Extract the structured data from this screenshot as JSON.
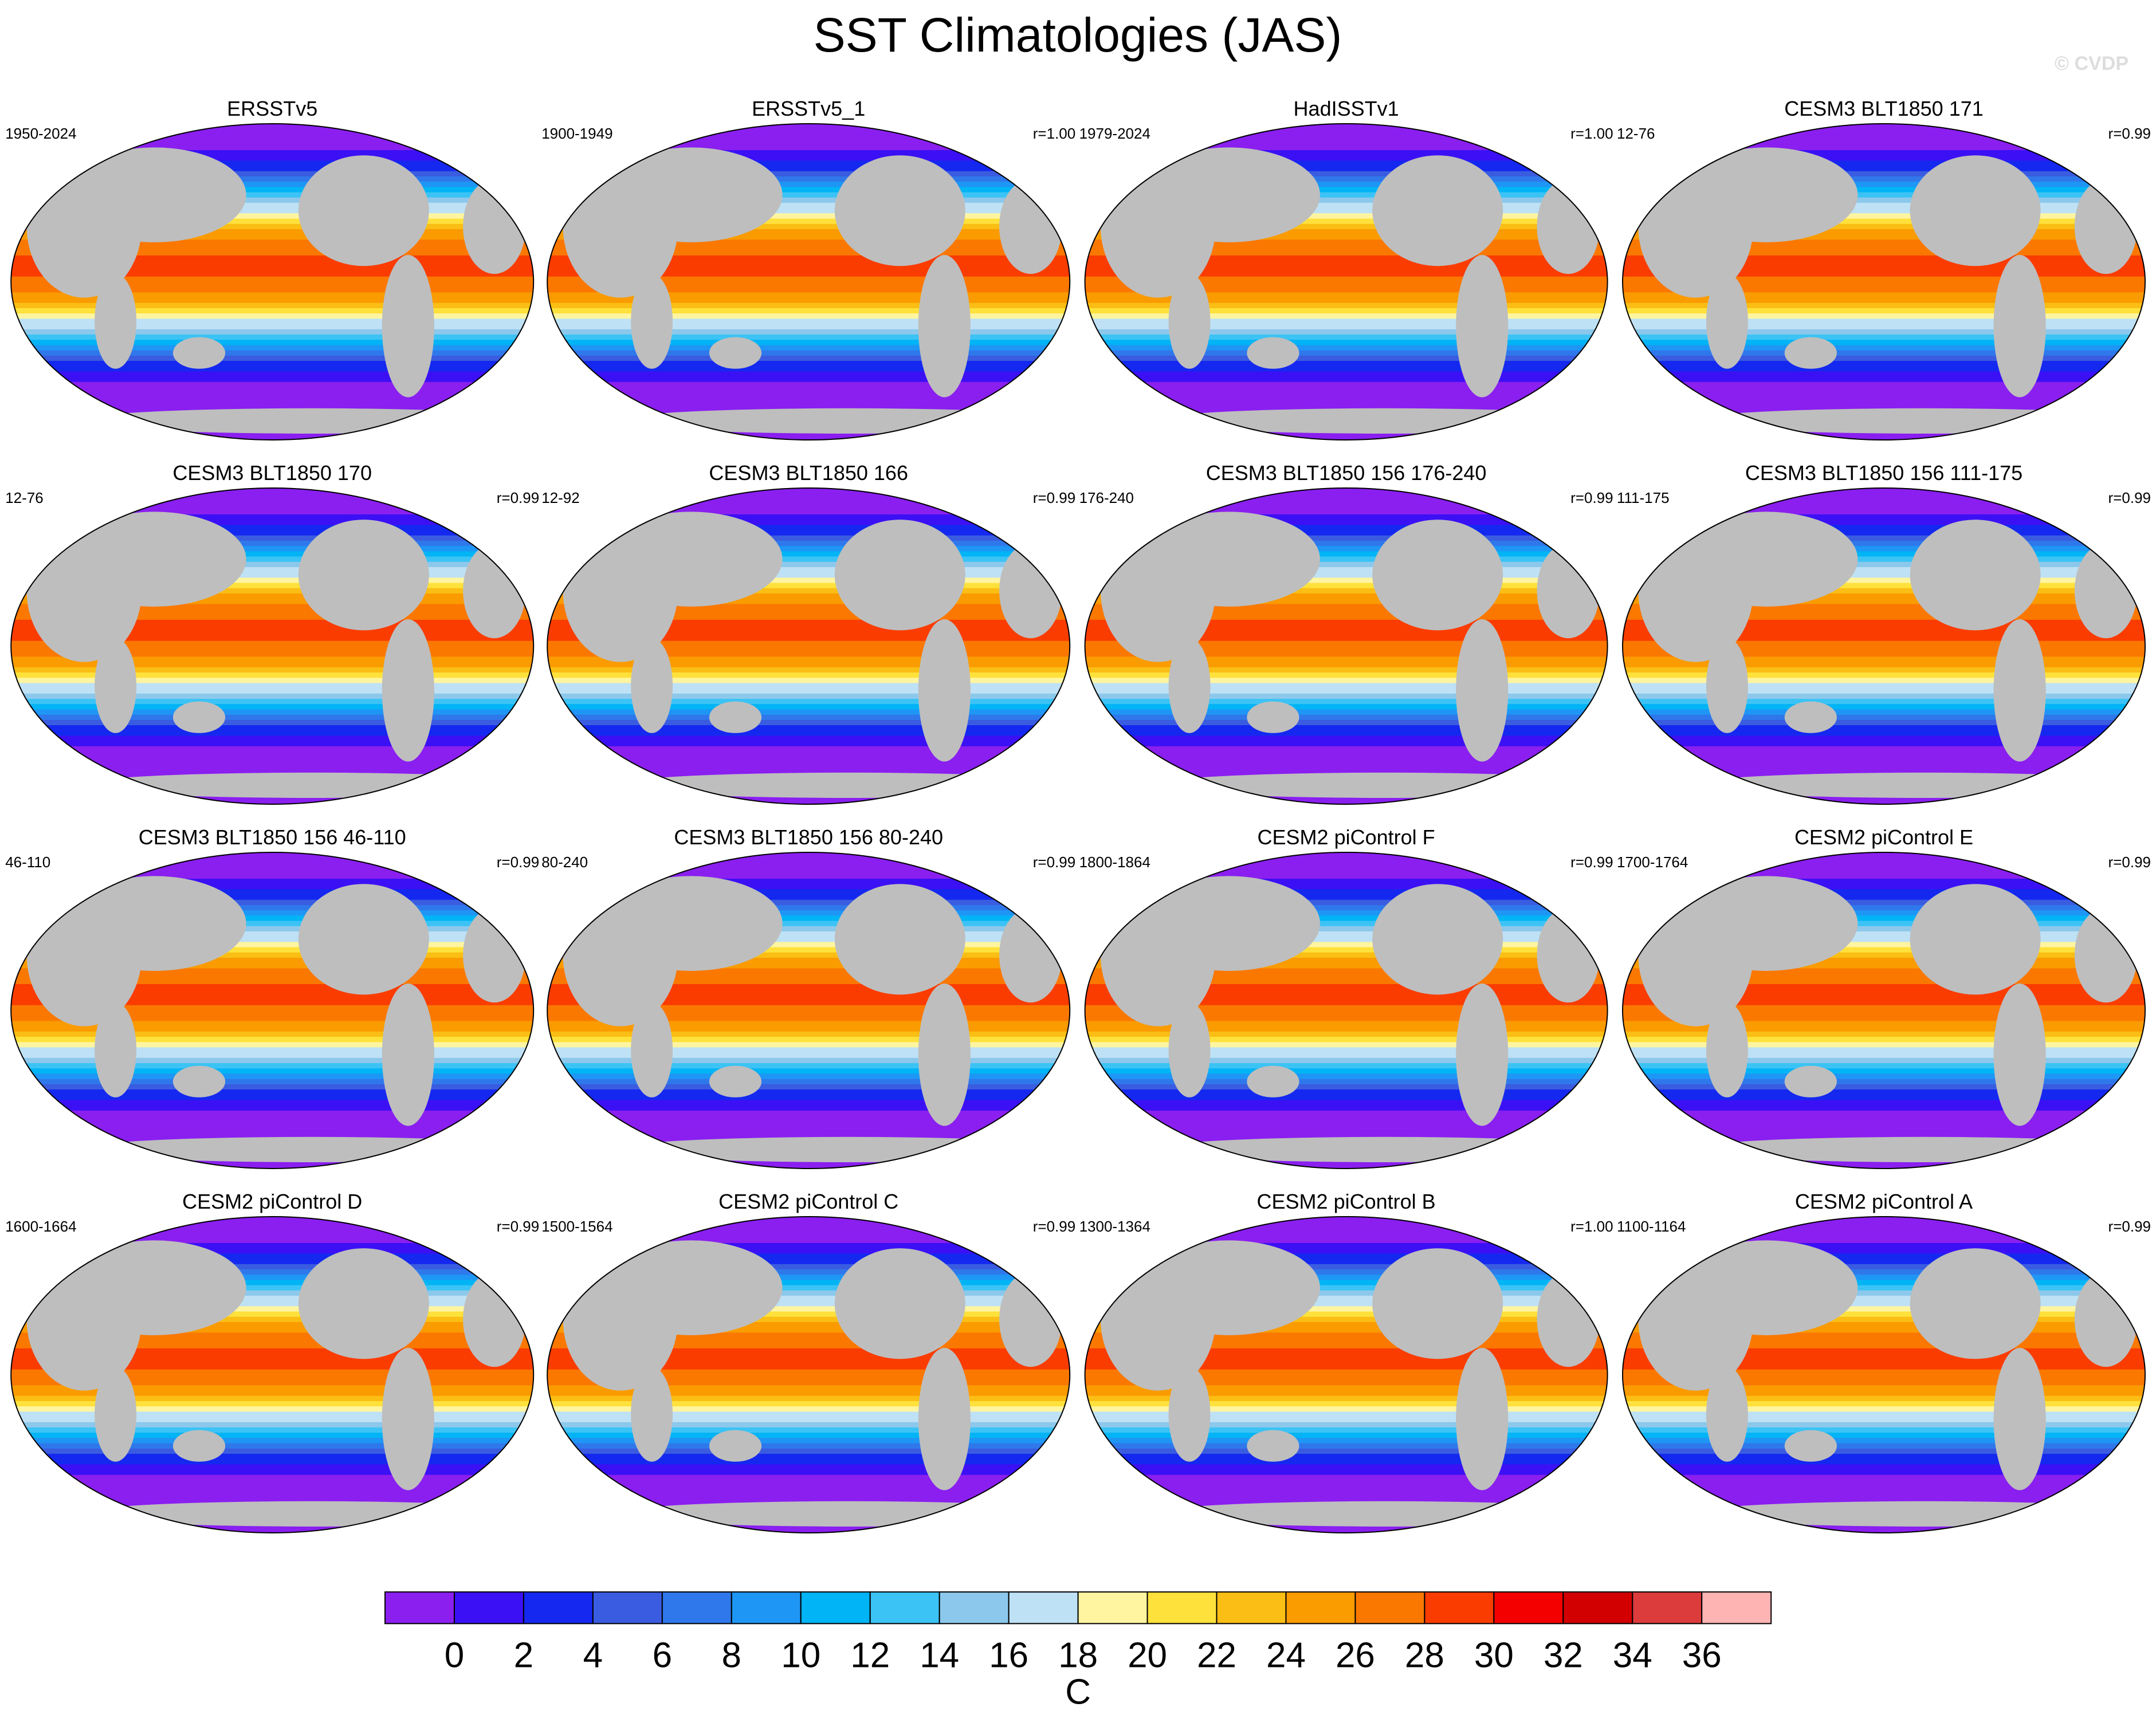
{
  "title": "SST Climatologies (JAS)",
  "watermark": "© CVDP",
  "panels": [
    {
      "title": "ERSSTv5",
      "period": "1950-2024"
    },
    {
      "title": "ERSSTv5_1",
      "period": "1900-1949",
      "r": "r=1.00"
    },
    {
      "title": "HadISSTv1",
      "period": "1979-2024",
      "r": "r=1.00"
    },
    {
      "title": "CESM3 BLT1850 171",
      "period": "12-76",
      "r": "r=0.99"
    },
    {
      "title": "CESM3 BLT1850 170",
      "period": "12-76",
      "r": "r=0.99"
    },
    {
      "title": "CESM3 BLT1850 166",
      "period": "12-92",
      "r": "r=0.99"
    },
    {
      "title": "CESM3 BLT1850 156 176-240",
      "period": "176-240",
      "r": "r=0.99"
    },
    {
      "title": "CESM3 BLT1850 156 111-175",
      "period": "111-175",
      "r": "r=0.99"
    },
    {
      "title": "CESM3 BLT1850 156 46-110",
      "period": "46-110",
      "r": "r=0.99"
    },
    {
      "title": "CESM3 BLT1850 156 80-240",
      "period": "80-240",
      "r": "r=0.99"
    },
    {
      "title": "CESM2 piControl F",
      "period": "1800-1864",
      "r": "r=0.99"
    },
    {
      "title": "CESM2 piControl E",
      "period": "1700-1764",
      "r": "r=0.99"
    },
    {
      "title": "CESM2 piControl D",
      "period": "1600-1664",
      "r": "r=0.99"
    },
    {
      "title": "CESM2 piControl C",
      "period": "1500-1564",
      "r": "r=0.99"
    },
    {
      "title": "CESM2 piControl B",
      "period": "1300-1364",
      "r": "r=1.00"
    },
    {
      "title": "CESM2 piControl A",
      "period": "1100-1164",
      "r": "r=0.99"
    }
  ],
  "colorbar": {
    "label": "C",
    "colors": [
      "#8a1ff0",
      "#3c10f5",
      "#1428f0",
      "#3a5ce0",
      "#2f78eb",
      "#1e96f5",
      "#00b4f5",
      "#3cc3f5",
      "#8cc8eb",
      "#bee1f5",
      "#fff5a0",
      "#ffe13c",
      "#fabe14",
      "#fa9b00",
      "#fa7800",
      "#fa3c00",
      "#f50000",
      "#d20000",
      "#dc3c3c",
      "#ffb4b4"
    ],
    "ticks": [
      0,
      2,
      4,
      6,
      8,
      10,
      12,
      14,
      16,
      18,
      20,
      22,
      24,
      26,
      28,
      30,
      32,
      34,
      36
    ]
  }
}
